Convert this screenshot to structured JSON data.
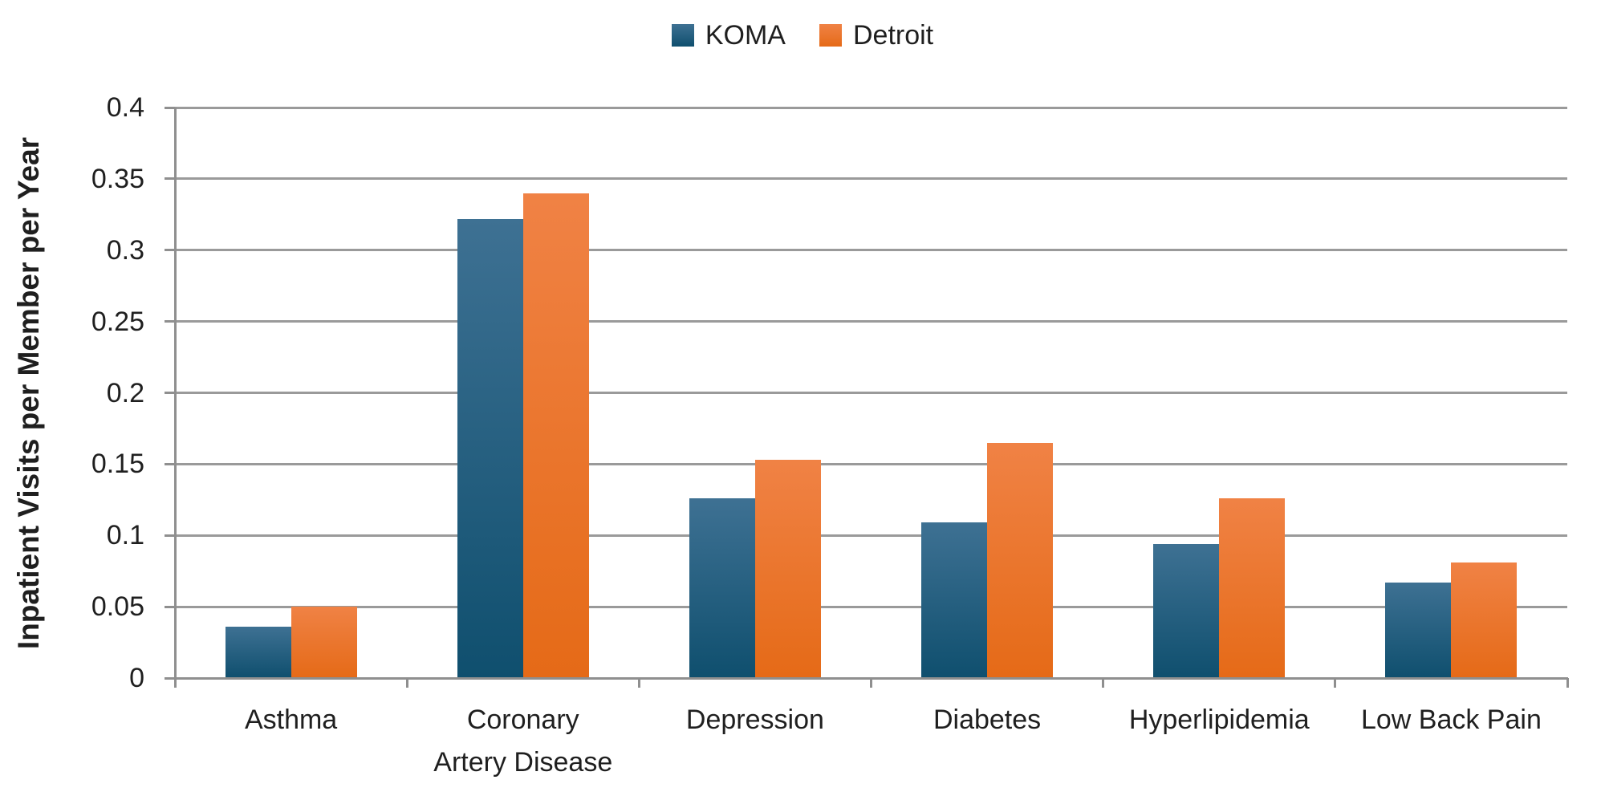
{
  "chart_data": {
    "type": "bar",
    "title": "",
    "xlabel": "",
    "ylabel": "Inpatient Visits per Member per Year",
    "ylim": [
      0,
      0.4
    ],
    "ytick_step": 0.05,
    "ytick_labels": [
      "0",
      "0.05",
      "0.1",
      "0.15",
      "0.2",
      "0.25",
      "0.3",
      "0.35",
      "0.4"
    ],
    "grid": "horizontal",
    "legend_position": "top-center",
    "categories": [
      "Asthma",
      "Coronary Artery Disease",
      "Depression",
      "Diabetes",
      "Hyperlipidemia",
      "Low Back Pain"
    ],
    "categories_wrapped": [
      [
        "Asthma"
      ],
      [
        "Coronary",
        "Artery Disease"
      ],
      [
        "Depression"
      ],
      [
        "Diabetes"
      ],
      [
        "Hyperlipidemia"
      ],
      [
        "Low Back Pain"
      ]
    ],
    "series": [
      {
        "name": "KOMA",
        "color": "#1F618A",
        "gradient_top": "#3E7193",
        "gradient_bottom": "#0F4F6E",
        "values": [
          0.036,
          0.322,
          0.126,
          0.109,
          0.094,
          0.067
        ]
      },
      {
        "name": "Detroit",
        "color": "#ED7D31",
        "gradient_top": "#F08245",
        "gradient_bottom": "#E56A17",
        "values": [
          0.05,
          0.34,
          0.153,
          0.165,
          0.126,
          0.081
        ]
      }
    ]
  },
  "colors": {
    "gridline": "#9A9A9A",
    "axis": "#8F8F8F",
    "text": "#1F1F1F",
    "background": "#FFFFFF"
  }
}
